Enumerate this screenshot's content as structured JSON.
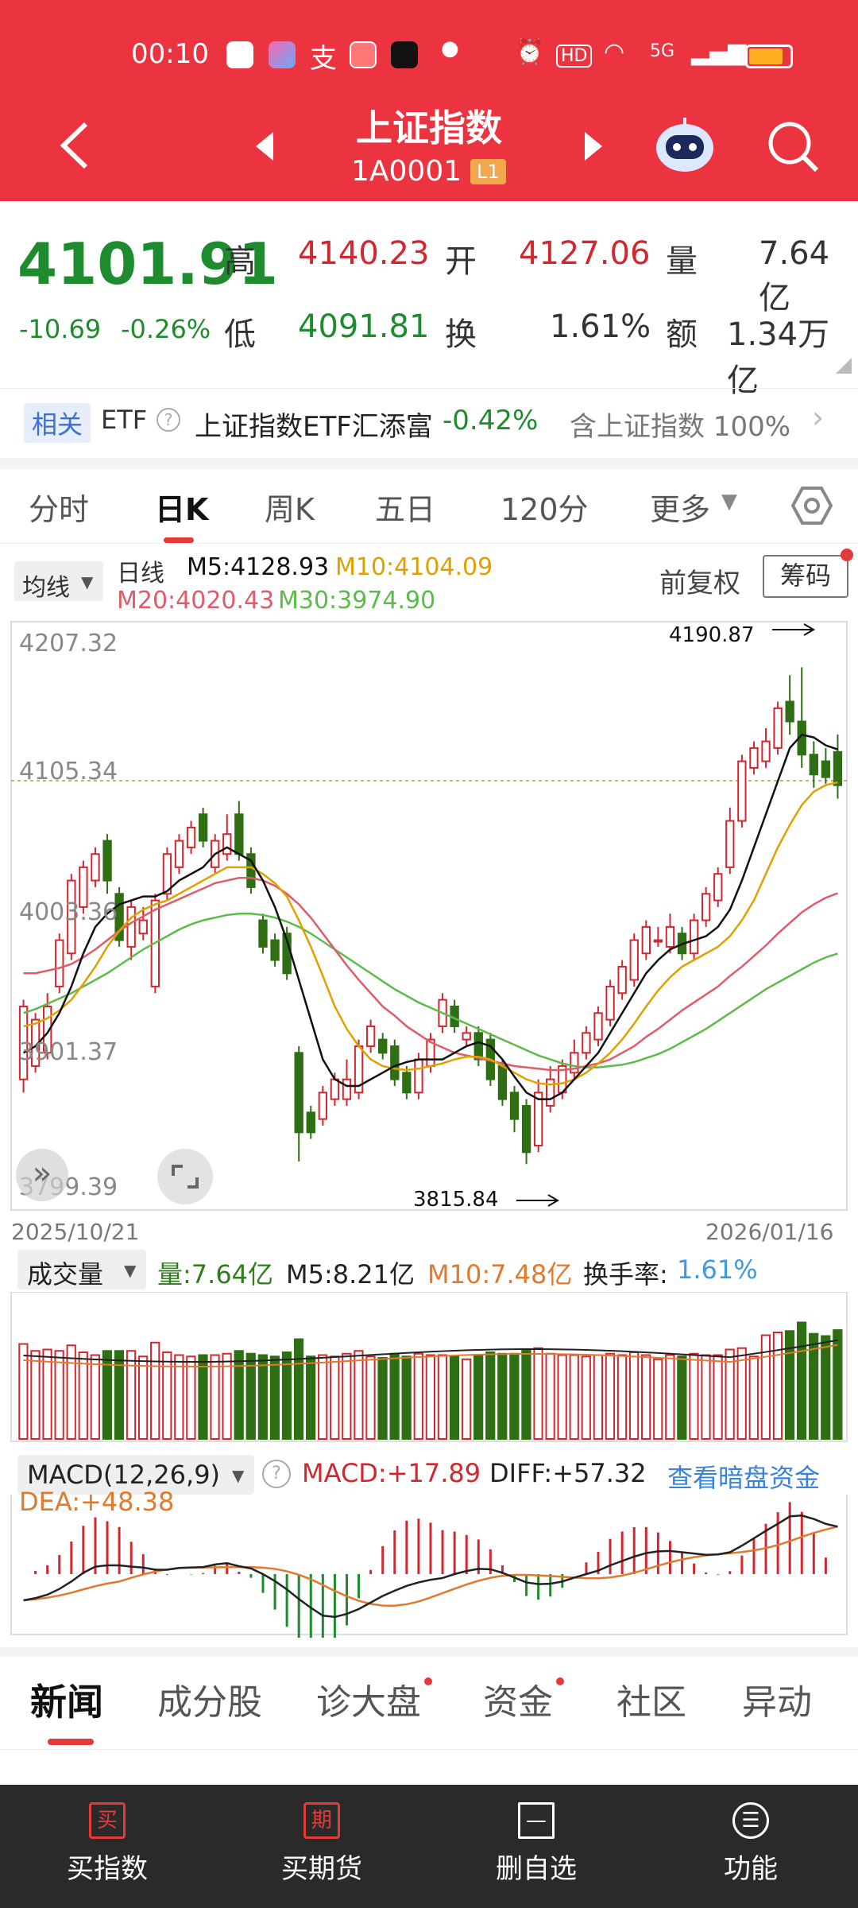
{
  "status_bar": {
    "time": "00:10",
    "network": "5G"
  },
  "header": {
    "title": "上证指数",
    "code": "1A0001",
    "level_badge": "L1"
  },
  "quote": {
    "price": "4101.91",
    "change": "-10.69",
    "change_pct": "-0.26%",
    "high_label": "高",
    "high": "4140.23",
    "open_label": "开",
    "open": "4127.06",
    "volume_label": "量",
    "volume": "7.64亿",
    "low_label": "低",
    "low": "4091.81",
    "turnover_label": "换",
    "turnover": "1.61%",
    "amount_label": "额",
    "amount": "1.34万亿"
  },
  "etf": {
    "tag": "相关",
    "label": "ETF",
    "name": "上证指数ETF汇添富",
    "change": "-0.42%",
    "contain": "含上证指数 100%"
  },
  "chart_tabs": [
    "分时",
    "日K",
    "周K",
    "五日",
    "120分",
    "更多"
  ],
  "active_tab": "日K",
  "ma": {
    "dropdown": "均线",
    "period": "日线",
    "m5": "M5:4128.93",
    "m10": "M10:4104.09",
    "m20": "M20:4020.43",
    "m30": "M30:3974.90",
    "adjust": "前复权",
    "chips": "筹码"
  },
  "kline_axis": {
    "y1": "4207.32",
    "y2": "4105.34",
    "y3": "4003.36",
    "y4": "3901.37",
    "y5": "3799.39",
    "date_start": "2025/10/21",
    "date_end": "2026/01/16",
    "max_label": "4190.87",
    "min_label": "3815.84"
  },
  "volume_panel": {
    "dropdown": "成交量",
    "vol": "量:7.64亿",
    "m5": "M5:8.21亿",
    "m10": "M10:7.48亿",
    "turnover_label": "换手率:",
    "turnover": "1.61%"
  },
  "macd_panel": {
    "dropdown": "MACD(12,26,9)",
    "macd": "MACD:+17.89",
    "diff": "DIFF:+57.32",
    "dea": "DEA:+48.38",
    "link": "查看暗盘资金"
  },
  "bottom_tabs": [
    "新闻",
    "成分股",
    "诊大盘",
    "资金",
    "社区",
    "异动"
  ],
  "bottom_nav": [
    {
      "icon": "买",
      "label": "买指数"
    },
    {
      "icon": "期",
      "label": "买期货"
    },
    {
      "icon": "—",
      "label": "删自选"
    },
    {
      "icon": "☰",
      "label": "功能"
    }
  ],
  "colors": {
    "header_red": "#EB3440",
    "up_red": "#D2272F",
    "down_green": "#1E8C2E",
    "ma5": "#111111",
    "ma10": "#E0A000",
    "ma20": "#E05B6A",
    "ma30": "#5DBB4A"
  },
  "chart_data": {
    "type": "candlestick",
    "x_range": [
      "2025/10/21",
      "2026/01/16"
    ],
    "ylim": [
      3799.39,
      4207.32
    ],
    "candles": [
      {
        "o": 3880,
        "c": 3935,
        "h": 3940,
        "l": 3870
      },
      {
        "o": 3890,
        "c": 3925,
        "h": 3930,
        "l": 3885
      },
      {
        "o": 3900,
        "c": 3935,
        "h": 3945,
        "l": 3895
      },
      {
        "o": 3950,
        "c": 3985,
        "h": 3990,
        "l": 3945
      },
      {
        "o": 3975,
        "c": 4030,
        "h": 4035,
        "l": 3970
      },
      {
        "o": 4010,
        "c": 4040,
        "h": 4045,
        "l": 4005
      },
      {
        "o": 4030,
        "c": 4050,
        "h": 4055,
        "l": 4025
      },
      {
        "o": 4060,
        "c": 4030,
        "h": 4065,
        "l": 4020
      },
      {
        "o": 4020,
        "c": 3985,
        "h": 4025,
        "l": 3980
      },
      {
        "o": 3980,
        "c": 4010,
        "h": 4015,
        "l": 3970
      },
      {
        "o": 3990,
        "c": 4000,
        "h": 4010,
        "l": 3985
      },
      {
        "o": 3950,
        "c": 4015,
        "h": 4020,
        "l": 3945
      },
      {
        "o": 4020,
        "c": 4050,
        "h": 4055,
        "l": 4015
      },
      {
        "o": 4040,
        "c": 4060,
        "h": 4065,
        "l": 4035
      },
      {
        "o": 4055,
        "c": 4070,
        "h": 4075,
        "l": 4050
      },
      {
        "o": 4080,
        "c": 4060,
        "h": 4085,
        "l": 4055
      },
      {
        "o": 4040,
        "c": 4060,
        "h": 4065,
        "l": 4035
      },
      {
        "o": 4050,
        "c": 4065,
        "h": 4080,
        "l": 4045
      },
      {
        "o": 4080,
        "c": 4050,
        "h": 4090,
        "l": 4045
      },
      {
        "o": 4050,
        "c": 4025,
        "h": 4055,
        "l": 4020
      },
      {
        "o": 4000,
        "c": 3980,
        "h": 4005,
        "l": 3975
      },
      {
        "o": 3985,
        "c": 3970,
        "h": 3990,
        "l": 3965
      },
      {
        "o": 3990,
        "c": 3960,
        "h": 3995,
        "l": 3955
      },
      {
        "o": 3900,
        "c": 3840,
        "h": 3905,
        "l": 3818
      },
      {
        "o": 3855,
        "c": 3840,
        "h": 3860,
        "l": 3835
      },
      {
        "o": 3850,
        "c": 3870,
        "h": 3875,
        "l": 3845
      },
      {
        "o": 3865,
        "c": 3880,
        "h": 3885,
        "l": 3860
      },
      {
        "o": 3865,
        "c": 3880,
        "h": 3895,
        "l": 3860
      },
      {
        "o": 3870,
        "c": 3905,
        "h": 3910,
        "l": 3865
      },
      {
        "o": 3905,
        "c": 3920,
        "h": 3925,
        "l": 3900
      },
      {
        "o": 3910,
        "c": 3900,
        "h": 3915,
        "l": 3895
      },
      {
        "o": 3905,
        "c": 3880,
        "h": 3910,
        "l": 3875
      },
      {
        "o": 3885,
        "c": 3870,
        "h": 3890,
        "l": 3865
      },
      {
        "o": 3870,
        "c": 3895,
        "h": 3900,
        "l": 3865
      },
      {
        "o": 3890,
        "c": 3910,
        "h": 3915,
        "l": 3885
      },
      {
        "o": 3920,
        "c": 3940,
        "h": 3945,
        "l": 3915
      },
      {
        "o": 3935,
        "c": 3920,
        "h": 3940,
        "l": 3915
      },
      {
        "o": 3910,
        "c": 3915,
        "h": 3920,
        "l": 3905
      },
      {
        "o": 3915,
        "c": 3895,
        "h": 3920,
        "l": 3890
      },
      {
        "o": 3910,
        "c": 3880,
        "h": 3915,
        "l": 3875
      },
      {
        "o": 3890,
        "c": 3865,
        "h": 3895,
        "l": 3860
      },
      {
        "o": 3870,
        "c": 3850,
        "h": 3875,
        "l": 3840
      },
      {
        "o": 3860,
        "c": 3825,
        "h": 3865,
        "l": 3816
      },
      {
        "o": 3830,
        "c": 3870,
        "h": 3880,
        "l": 3825
      },
      {
        "o": 3860,
        "c": 3880,
        "h": 3890,
        "l": 3855
      },
      {
        "o": 3870,
        "c": 3890,
        "h": 3895,
        "l": 3865
      },
      {
        "o": 3885,
        "c": 3900,
        "h": 3910,
        "l": 3880
      },
      {
        "o": 3900,
        "c": 3915,
        "h": 3920,
        "l": 3895
      },
      {
        "o": 3910,
        "c": 3930,
        "h": 3935,
        "l": 3905
      },
      {
        "o": 3925,
        "c": 3950,
        "h": 3955,
        "l": 3920
      },
      {
        "o": 3945,
        "c": 3965,
        "h": 3970,
        "l": 3940
      },
      {
        "o": 3955,
        "c": 3985,
        "h": 3990,
        "l": 3950
      },
      {
        "o": 3975,
        "c": 3995,
        "h": 4000,
        "l": 3970
      },
      {
        "o": 3985,
        "c": 3985,
        "h": 3995,
        "l": 3980
      },
      {
        "o": 3980,
        "c": 3995,
        "h": 4005,
        "l": 3975
      },
      {
        "o": 3990,
        "c": 3975,
        "h": 3995,
        "l": 3970
      },
      {
        "o": 3975,
        "c": 4000,
        "h": 4005,
        "l": 3970
      },
      {
        "o": 4000,
        "c": 4020,
        "h": 4025,
        "l": 3995
      },
      {
        "o": 4015,
        "c": 4035,
        "h": 4040,
        "l": 4010
      },
      {
        "o": 4040,
        "c": 4075,
        "h": 4085,
        "l": 4035
      },
      {
        "o": 4075,
        "c": 4120,
        "h": 4125,
        "l": 4070
      },
      {
        "o": 4115,
        "c": 4130,
        "h": 4135,
        "l": 4110
      },
      {
        "o": 4120,
        "c": 4135,
        "h": 4145,
        "l": 4115
      },
      {
        "o": 4130,
        "c": 4160,
        "h": 4165,
        "l": 4125
      },
      {
        "o": 4165,
        "c": 4150,
        "h": 4185,
        "l": 4140
      },
      {
        "o": 4150,
        "c": 4125,
        "h": 4190.87,
        "l": 4115
      },
      {
        "o": 4125,
        "c": 4110,
        "h": 4135,
        "l": 4100
      },
      {
        "o": 4120,
        "c": 4108,
        "h": 4130,
        "l": 4103
      },
      {
        "o": 4127.06,
        "c": 4101.91,
        "h": 4140.23,
        "l": 4091.81
      }
    ],
    "ma5": [
      3900,
      3905,
      3915,
      3930,
      3950,
      3975,
      3995,
      4005,
      4012,
      4015,
      4018,
      4018,
      4022,
      4030,
      4035,
      4040,
      4050,
      4055,
      4050,
      4045,
      4030,
      4010,
      3985,
      3955,
      3925,
      3895,
      3880,
      3875,
      3875,
      3880,
      3885,
      3890,
      3893,
      3895,
      3895,
      3895,
      3900,
      3905,
      3908,
      3905,
      3895,
      3882,
      3870,
      3865,
      3865,
      3870,
      3880,
      3890,
      3900,
      3915,
      3930,
      3945,
      3960,
      3970,
      3978,
      3982,
      3985,
      3988,
      3995,
      4008,
      4030,
      4055,
      4080,
      4105,
      4130,
      4140,
      4138,
      4132,
      4128.93
    ],
    "ma10": [
      3920,
      3922,
      3926,
      3932,
      3940,
      3952,
      3965,
      3980,
      3992,
      4002,
      4008,
      4012,
      4015,
      4020,
      4025,
      4030,
      4035,
      4040,
      4040,
      4040,
      4035,
      4028,
      4018,
      4000,
      3980,
      3958,
      3935,
      3918,
      3905,
      3895,
      3890,
      3888,
      3887,
      3888,
      3890,
      3892,
      3895,
      3897,
      3897,
      3895,
      3890,
      3885,
      3880,
      3877,
      3876,
      3877,
      3880,
      3885,
      3892,
      3900,
      3910,
      3922,
      3935,
      3947,
      3957,
      3965,
      3970,
      3975,
      3980,
      3988,
      4000,
      4015,
      4035,
      4055,
      4072,
      4087,
      4097,
      4102,
      4104.09
    ],
    "ma20": [
      3960,
      3960,
      3962,
      3964,
      3967,
      3972,
      3978,
      3985,
      3992,
      3998,
      4003,
      4008,
      4012,
      4016,
      4020,
      4024,
      4028,
      4030,
      4032,
      4032,
      4030,
      4026,
      4020,
      4012,
      4002,
      3990,
      3978,
      3966,
      3955,
      3945,
      3935,
      3928,
      3920,
      3914,
      3908,
      3904,
      3900,
      3898,
      3896,
      3894,
      3892,
      3890,
      3889,
      3888,
      3887,
      3887,
      3888,
      3890,
      3892,
      3895,
      3900,
      3905,
      3912,
      3918,
      3925,
      3932,
      3938,
      3944,
      3950,
      3958,
      3965,
      3973,
      3981,
      3990,
      3998,
      4006,
      4012,
      4017,
      4020.43
    ],
    "ma30": [
      3930,
      3933,
      3937,
      3941,
      3945,
      3950,
      3955,
      3960,
      3966,
      3972,
      3978,
      3983,
      3988,
      3993,
      3997,
      4000,
      4002,
      4004,
      4005,
      4005,
      4004,
      4002,
      3999,
      3995,
      3990,
      3984,
      3978,
      3972,
      3966,
      3960,
      3954,
      3948,
      3943,
      3938,
      3934,
      3930,
      3926,
      3922,
      3918,
      3914,
      3910,
      3906,
      3902,
      3898,
      3895,
      3892,
      3890,
      3889,
      3889,
      3890,
      3891,
      3893,
      3896,
      3899,
      3903,
      3908,
      3913,
      3918,
      3924,
      3930,
      3936,
      3942,
      3948,
      3953,
      3958,
      3963,
      3968,
      3972,
      3974.9
    ]
  }
}
